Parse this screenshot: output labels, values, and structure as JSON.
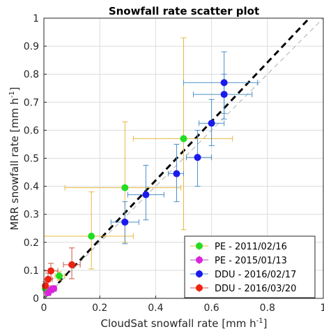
{
  "chart_data": {
    "type": "scatter",
    "title": "Snowfall rate scatter plot",
    "xlabel": "CloudSat snowfall rate [mm h",
    "ylabel": "MRR snowfall rate [mm h",
    "unit_superscript": "-1",
    "unit_close": "]",
    "xlim": [
      0,
      1
    ],
    "ylim": [
      0,
      1
    ],
    "xticks": [
      "0",
      "0.2",
      "0.4",
      "0.6",
      "0.8",
      "1"
    ],
    "yticks": [
      "0",
      "0.1",
      "0.2",
      "0.3",
      "0.4",
      "0.5",
      "0.6",
      "0.7",
      "0.8",
      "0.9",
      "1"
    ],
    "xtick_values": [
      0,
      0.2,
      0.4,
      0.6,
      0.8,
      1.0
    ],
    "ytick_values": [
      0,
      0.1,
      0.2,
      0.3,
      0.4,
      0.5,
      0.6,
      0.7,
      0.8,
      0.9,
      1.0
    ],
    "grid": true,
    "legend_position": "bottom-right",
    "reference_lines": [
      {
        "style": "black-dashed",
        "x": [
          0,
          0.95
        ],
        "y": [
          0,
          1.0
        ]
      },
      {
        "style": "grey-dashed",
        "x": [
          0,
          1.0
        ],
        "y": [
          0,
          1.0
        ]
      }
    ],
    "series": [
      {
        "name": "PE - 2011/02/16",
        "color": "#22dd22",
        "error_color": "#e8b840",
        "points": [
          {
            "x": 0.005,
            "y": 0.035,
            "xerr": [
              0.0,
              0.02
            ],
            "yerr": [
              0.02,
              0.05
            ]
          },
          {
            "x": 0.055,
            "y": 0.08,
            "xerr": [
              0.04,
              0.075
            ],
            "yerr": [
              0.065,
              0.095
            ]
          },
          {
            "x": 0.17,
            "y": 0.222,
            "xerr": [
              0.0,
              0.32
            ],
            "yerr": [
              0.105,
              0.38
            ]
          },
          {
            "x": 0.29,
            "y": 0.395,
            "xerr": [
              0.075,
              0.49
            ],
            "yerr": [
              0.2,
              0.63
            ]
          },
          {
            "x": 0.5,
            "y": 0.57,
            "xerr": [
              0.32,
              0.675
            ],
            "yerr": [
              0.245,
              0.93
            ]
          }
        ]
      },
      {
        "name": "PE - 2015/01/13",
        "color": "#dd22dd",
        "error_color": "#9b59b6",
        "points": [
          {
            "x": 0.015,
            "y": 0.02,
            "xerr": [
              0.005,
              0.025
            ],
            "yerr": [
              0.01,
              0.03
            ]
          },
          {
            "x": 0.025,
            "y": 0.03,
            "xerr": [
              0.015,
              0.035
            ],
            "yerr": [
              0.02,
              0.04
            ]
          },
          {
            "x": 0.035,
            "y": 0.035,
            "xerr": [
              0.025,
              0.045
            ],
            "yerr": [
              0.025,
              0.045
            ]
          }
        ]
      },
      {
        "name": "DDU - 2016/02/17",
        "color": "#1a1aee",
        "error_color": "#4a90c8",
        "points": [
          {
            "x": 0.29,
            "y": 0.272,
            "xerr": [
              0.24,
              0.34
            ],
            "yerr": [
              0.195,
              0.345
            ]
          },
          {
            "x": 0.365,
            "y": 0.37,
            "xerr": [
              0.3,
              0.43
            ],
            "yerr": [
              0.28,
              0.475
            ]
          },
          {
            "x": 0.475,
            "y": 0.445,
            "xerr": [
              0.445,
              0.5
            ],
            "yerr": [
              0.345,
              0.55
            ]
          },
          {
            "x": 0.55,
            "y": 0.503,
            "xerr": [
              0.51,
              0.6
            ],
            "yerr": [
              0.4,
              0.6
            ]
          },
          {
            "x": 0.6,
            "y": 0.625,
            "xerr": [
              0.555,
              0.645
            ],
            "yerr": [
              0.545,
              0.71
            ]
          },
          {
            "x": 0.645,
            "y": 0.728,
            "xerr": [
              0.535,
              0.745
            ],
            "yerr": [
              0.64,
              0.8
            ]
          },
          {
            "x": 0.645,
            "y": 0.77,
            "xerr": [
              0.5,
              0.765
            ],
            "yerr": [
              0.66,
              0.88
            ]
          }
        ]
      },
      {
        "name": "DDU - 2016/03/20",
        "color": "#ee2211",
        "error_color": "#cc5544",
        "points": [
          {
            "x": 0.005,
            "y": 0.045,
            "xerr": [
              0.0,
              0.015
            ],
            "yerr": [
              0.03,
              0.06
            ]
          },
          {
            "x": 0.015,
            "y": 0.068,
            "xerr": [
              0.0,
              0.03
            ],
            "yerr": [
              0.045,
              0.09
            ]
          },
          {
            "x": 0.025,
            "y": 0.098,
            "xerr": [
              0.0,
              0.05
            ],
            "yerr": [
              0.07,
              0.125
            ]
          },
          {
            "x": 0.1,
            "y": 0.12,
            "xerr": [
              0.07,
              0.13
            ],
            "yerr": [
              0.07,
              0.18
            ]
          }
        ]
      }
    ]
  }
}
